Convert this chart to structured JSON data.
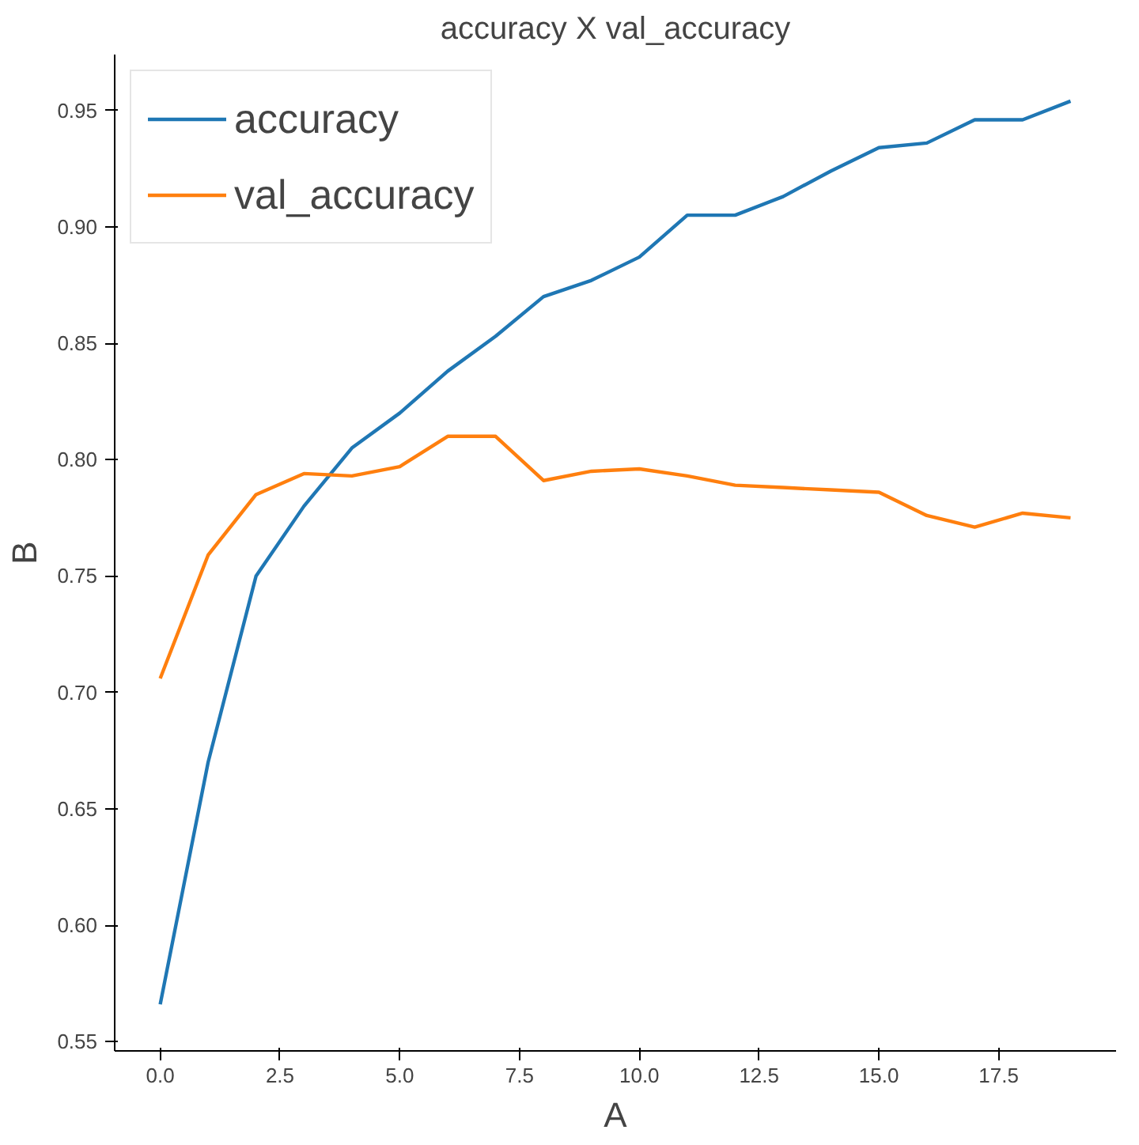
{
  "chart_data": {
    "type": "line",
    "title": "accuracy X val_accuracy",
    "xlabel": "A",
    "ylabel": "B",
    "x": [
      0,
      1,
      2,
      3,
      4,
      5,
      6,
      7,
      8,
      9,
      10,
      11,
      12,
      13,
      14,
      15,
      16,
      17,
      18,
      19
    ],
    "series": [
      {
        "name": "accuracy",
        "color": "#1f77b4",
        "values": [
          0.566,
          0.67,
          0.75,
          0.78,
          0.805,
          0.82,
          0.838,
          0.853,
          0.87,
          0.877,
          0.887,
          0.905,
          0.905,
          0.913,
          0.924,
          0.934,
          0.936,
          0.946,
          0.946,
          0.954
        ]
      },
      {
        "name": "val_accuracy",
        "color": "#ff7f0e",
        "values": [
          0.706,
          0.759,
          0.785,
          0.794,
          0.793,
          0.797,
          0.81,
          0.81,
          0.791,
          0.795,
          0.796,
          0.793,
          0.789,
          0.788,
          0.787,
          0.786,
          0.776,
          0.771,
          0.777,
          0.775
        ]
      }
    ],
    "xlim": [
      -0.95,
      19.95
    ],
    "xticks": [
      {
        "value": 0,
        "label": "0.0"
      },
      {
        "value": 2.5,
        "label": "2.5"
      },
      {
        "value": 5,
        "label": "5.0"
      },
      {
        "value": 7.5,
        "label": "7.5"
      },
      {
        "value": 10,
        "label": "10.0"
      },
      {
        "value": 12.5,
        "label": "12.5"
      },
      {
        "value": 15,
        "label": "15.0"
      },
      {
        "value": 17.5,
        "label": "17.5"
      }
    ],
    "ylim": [
      0.546,
      0.974
    ],
    "yticks": [
      0.55,
      {
        "value": 0.6,
        "label": "0.60"
      },
      {
        "value": 0.65,
        "label": "0.65"
      },
      {
        "value": 0.7,
        "label": "0.70"
      },
      0.75,
      {
        "value": 0.8,
        "label": "0.80"
      },
      0.85,
      {
        "value": 0.9,
        "label": "0.90"
      },
      0.95
    ],
    "legend": "top left",
    "grid": false,
    "line_style": "solid",
    "marker": "none"
  }
}
